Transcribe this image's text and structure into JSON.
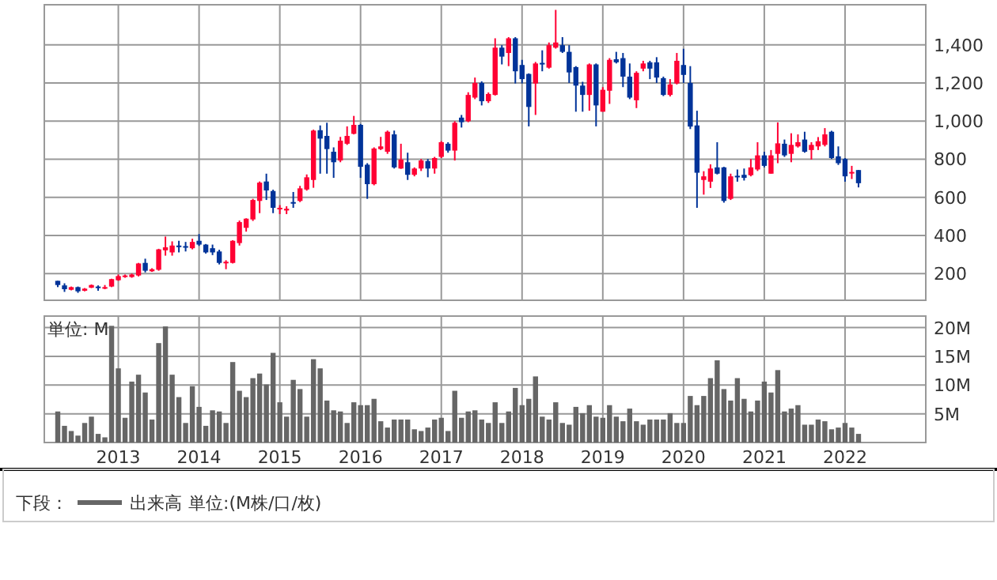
{
  "chart_data": [
    {
      "type": "candlestick",
      "grid": true,
      "tick_labels": "y",
      "xlim": [
        "2012-02",
        "2023-01"
      ],
      "ylim": [
        60,
        1610
      ],
      "xticks": [
        {
          "value": "2013",
          "label": null
        },
        {
          "value": "2014",
          "label": null
        },
        {
          "value": "2015",
          "label": null
        },
        {
          "value": "2016",
          "label": null
        },
        {
          "value": "2017",
          "label": null
        },
        {
          "value": "2018",
          "label": null
        },
        {
          "value": "2019",
          "label": null
        },
        {
          "value": "2020",
          "label": null
        },
        {
          "value": "2021",
          "label": null
        },
        {
          "value": "2022",
          "label": null
        }
      ],
      "yticks": [
        200,
        400,
        600,
        800,
        {
          "value": 1000,
          "label": "1,000"
        },
        {
          "value": 1200,
          "label": "1,200"
        },
        {
          "value": 1400,
          "label": "1,400"
        }
      ],
      "x": [
        "2012-04",
        "2012-05",
        "2012-06",
        "2012-07",
        "2012-08",
        "2012-09",
        "2012-10",
        "2012-11",
        "2012-12",
        "2013-01",
        "2013-02",
        "2013-03",
        "2013-04",
        "2013-05",
        "2013-06",
        "2013-07",
        "2013-08",
        "2013-09",
        "2013-10",
        "2013-11",
        "2013-12",
        "2014-01",
        "2014-02",
        "2014-03",
        "2014-04",
        "2014-05",
        "2014-06",
        "2014-07",
        "2014-08",
        "2014-09",
        "2014-10",
        "2014-11",
        "2014-12",
        "2015-01",
        "2015-02",
        "2015-03",
        "2015-04",
        "2015-05",
        "2015-06",
        "2015-07",
        "2015-08",
        "2015-09",
        "2015-10",
        "2015-11",
        "2015-12",
        "2016-01",
        "2016-02",
        "2016-03",
        "2016-04",
        "2016-05",
        "2016-06",
        "2016-07",
        "2016-08",
        "2016-09",
        "2016-10",
        "2016-11",
        "2016-12",
        "2017-01",
        "2017-02",
        "2017-03",
        "2017-04",
        "2017-05",
        "2017-06",
        "2017-07",
        "2017-08",
        "2017-09",
        "2017-10",
        "2017-11",
        "2017-12",
        "2018-01",
        "2018-02",
        "2018-03",
        "2018-04",
        "2018-05",
        "2018-06",
        "2018-07",
        "2018-08",
        "2018-09",
        "2018-10",
        "2018-11",
        "2018-12",
        "2019-01",
        "2019-02",
        "2019-03",
        "2019-04",
        "2019-05",
        "2019-06",
        "2019-07",
        "2019-08",
        "2019-09",
        "2019-10",
        "2019-11",
        "2019-12",
        "2020-01",
        "2020-02",
        "2020-03",
        "2020-04",
        "2020-05",
        "2020-06",
        "2020-07",
        "2020-08",
        "2020-09",
        "2020-10",
        "2020-11",
        "2020-12",
        "2021-01",
        "2021-02",
        "2021-03",
        "2021-04",
        "2021-05",
        "2021-06",
        "2021-07",
        "2021-08",
        "2021-09",
        "2021-10",
        "2021-11",
        "2021-12",
        "2022-01",
        "2022-02",
        "2022-03"
      ],
      "ohlc": [
        [
          162,
          162,
          129,
          140
        ],
        [
          138,
          149,
          104,
          118
        ],
        [
          115,
          132,
          112,
          129
        ],
        [
          129,
          132,
          99,
          107
        ],
        [
          110,
          124,
          107,
          121
        ],
        [
          126,
          143,
          124,
          140
        ],
        [
          132,
          138,
          110,
          126
        ],
        [
          127,
          140,
          118,
          129
        ],
        [
          132,
          173,
          129,
          171
        ],
        [
          165,
          195,
          162,
          187
        ],
        [
          182,
          195,
          178,
          190
        ],
        [
          182,
          200,
          178,
          195
        ],
        [
          190,
          256,
          185,
          253
        ],
        [
          256,
          278,
          206,
          215
        ],
        [
          212,
          228,
          209,
          223
        ],
        [
          220,
          330,
          215,
          327
        ],
        [
          322,
          394,
          294,
          338
        ],
        [
          311,
          369,
          294,
          347
        ],
        [
          347,
          372,
          311,
          344
        ],
        [
          344,
          366,
          316,
          340
        ],
        [
          333,
          383,
          327,
          366
        ],
        [
          372,
          407,
          345,
          352
        ],
        [
          352,
          355,
          305,
          311
        ],
        [
          333,
          352,
          297,
          311
        ],
        [
          316,
          325,
          248,
          256
        ],
        [
          259,
          270,
          223,
          262
        ],
        [
          256,
          375,
          253,
          372
        ],
        [
          360,
          478,
          347,
          470
        ],
        [
          440,
          490,
          420,
          488
        ],
        [
          484,
          592,
          476,
          586
        ],
        [
          581,
          683,
          517,
          677
        ],
        [
          683,
          724,
          586,
          636
        ],
        [
          633,
          640,
          517,
          545
        ],
        [
          540,
          559,
          512,
          545
        ],
        [
          531,
          553,
          512,
          540
        ],
        [
          575,
          628,
          545,
          570
        ],
        [
          581,
          660,
          575,
          647
        ],
        [
          641,
          720,
          635,
          705
        ],
        [
          691,
          955,
          650,
          950
        ],
        [
          952,
          977,
          724,
          908
        ],
        [
          922,
          991,
          724,
          853
        ],
        [
          839,
          862,
          702,
          784
        ],
        [
          793,
          917,
          784,
          897
        ],
        [
          881,
          972,
          875,
          922
        ],
        [
          933,
          1027,
          930,
          980
        ],
        [
          980,
          985,
          702,
          760
        ],
        [
          771,
          779,
          592,
          669
        ],
        [
          669,
          862,
          663,
          856
        ],
        [
          853,
          917,
          848,
          867
        ],
        [
          839,
          950,
          828,
          944
        ],
        [
          930,
          950,
          751,
          757
        ],
        [
          751,
          881,
          749,
          798
        ],
        [
          784,
          834,
          691,
          718
        ],
        [
          718,
          757,
          710,
          751
        ],
        [
          751,
          801,
          738,
          793
        ],
        [
          790,
          801,
          705,
          751
        ],
        [
          751,
          812,
          724,
          806
        ],
        [
          812,
          895,
          806,
          889
        ],
        [
          881,
          889,
          834,
          845
        ],
        [
          845,
          999,
          793,
          991
        ],
        [
          1018,
          1032,
          966,
          994
        ],
        [
          999,
          1151,
          994,
          1137
        ],
        [
          1123,
          1228,
          1115,
          1200
        ],
        [
          1200,
          1208,
          1082,
          1104
        ],
        [
          1104,
          1150,
          1095,
          1142
        ],
        [
          1137,
          1434,
          1134,
          1385
        ],
        [
          1385,
          1398,
          1297,
          1338
        ],
        [
          1357,
          1440,
          1288,
          1434
        ],
        [
          1434,
          1440,
          1197,
          1261
        ],
        [
          1294,
          1321,
          1197,
          1220
        ],
        [
          1247,
          1250,
          972,
          1074
        ],
        [
          1197,
          1310,
          1032,
          1302
        ],
        [
          1305,
          1371,
          1261,
          1297
        ],
        [
          1280,
          1412,
          1275,
          1398
        ],
        [
          1385,
          1583,
          1380,
          1412
        ],
        [
          1398,
          1440,
          1357,
          1363
        ],
        [
          1363,
          1398,
          1200,
          1255
        ],
        [
          1283,
          1288,
          1049,
          1186
        ],
        [
          1186,
          1206,
          1049,
          1137
        ],
        [
          1137,
          1302,
          1054,
          1297
        ],
        [
          1297,
          1302,
          972,
          1082
        ],
        [
          1049,
          1178,
          1049,
          1164
        ],
        [
          1159,
          1330,
          1090,
          1321
        ],
        [
          1324,
          1363,
          1302,
          1308
        ],
        [
          1330,
          1357,
          1178,
          1233
        ],
        [
          1233,
          1302,
          1115,
          1123
        ],
        [
          1109,
          1261,
          1068,
          1253
        ],
        [
          1275,
          1316,
          1261,
          1302
        ],
        [
          1308,
          1316,
          1220,
          1275
        ],
        [
          1308,
          1335,
          1200,
          1228
        ],
        [
          1225,
          1233,
          1131,
          1137
        ],
        [
          1137,
          1220,
          1129,
          1192
        ],
        [
          1197,
          1357,
          1192,
          1316
        ],
        [
          1294,
          1379,
          1200,
          1242
        ],
        [
          1200,
          1288,
          958,
          971
        ],
        [
          977,
          1054,
          545,
          729
        ],
        [
          691,
          737,
          614,
          710
        ],
        [
          682,
          773,
          649,
          751
        ],
        [
          757,
          889,
          720,
          724
        ],
        [
          757,
          760,
          572,
          581
        ],
        [
          592,
          724,
          586,
          710
        ],
        [
          713,
          746,
          682,
          707
        ],
        [
          718,
          751,
          688,
          702
        ],
        [
          716,
          801,
          710,
          757
        ],
        [
          746,
          889,
          738,
          820
        ],
        [
          820,
          839,
          757,
          765
        ],
        [
          724,
          848,
          724,
          820
        ],
        [
          828,
          993,
          779,
          883
        ],
        [
          881,
          903,
          812,
          820
        ],
        [
          828,
          936,
          784,
          875
        ],
        [
          867,
          930,
          861,
          889
        ],
        [
          903,
          944,
          834,
          839
        ],
        [
          848,
          889,
          798,
          875
        ],
        [
          867,
          916,
          848,
          894
        ],
        [
          875,
          963,
          867,
          930
        ],
        [
          944,
          949,
          801,
          806
        ],
        [
          815,
          867,
          770,
          779
        ],
        [
          801,
          806,
          682,
          710
        ],
        [
          727,
          765,
          696,
          733
        ],
        [
          743,
          743,
          652,
          674
        ]
      ]
    },
    {
      "type": "bar",
      "grid": true,
      "xlim": [
        "2012-02",
        "2023-01"
      ],
      "ylim": [
        0,
        22
      ],
      "legend": "bottom",
      "legend_title": "下段：",
      "annotations": [
        "単位: M",
        "単位:(M株/口/枚)"
      ],
      "xticks": [
        "2013",
        "2014",
        "2015",
        "2016",
        "2017",
        "2018",
        "2019",
        "2020",
        "2021",
        "2022"
      ],
      "yticks": [
        {
          "value": 5,
          "label": "5M"
        },
        {
          "value": 10,
          "label": "10M"
        },
        {
          "value": 15,
          "label": "15M"
        },
        {
          "value": 20,
          "label": "20M"
        }
      ],
      "x": [
        "2012-04",
        "2012-05",
        "2012-06",
        "2012-07",
        "2012-08",
        "2012-09",
        "2012-10",
        "2012-11",
        "2012-12",
        "2013-01",
        "2013-02",
        "2013-03",
        "2013-04",
        "2013-05",
        "2013-06",
        "2013-07",
        "2013-08",
        "2013-09",
        "2013-10",
        "2013-11",
        "2013-12",
        "2014-01",
        "2014-02",
        "2014-03",
        "2014-04",
        "2014-05",
        "2014-06",
        "2014-07",
        "2014-08",
        "2014-09",
        "2014-10",
        "2014-11",
        "2014-12",
        "2015-01",
        "2015-02",
        "2015-03",
        "2015-04",
        "2015-05",
        "2015-06",
        "2015-07",
        "2015-08",
        "2015-09",
        "2015-10",
        "2015-11",
        "2015-12",
        "2016-01",
        "2016-02",
        "2016-03",
        "2016-04",
        "2016-05",
        "2016-06",
        "2016-07",
        "2016-08",
        "2016-09",
        "2016-10",
        "2016-11",
        "2016-12",
        "2017-01",
        "2017-02",
        "2017-03",
        "2017-04",
        "2017-05",
        "2017-06",
        "2017-07",
        "2017-08",
        "2017-09",
        "2017-10",
        "2017-11",
        "2017-12",
        "2018-01",
        "2018-02",
        "2018-03",
        "2018-04",
        "2018-05",
        "2018-06",
        "2018-07",
        "2018-08",
        "2018-09",
        "2018-10",
        "2018-11",
        "2018-12",
        "2019-01",
        "2019-02",
        "2019-03",
        "2019-04",
        "2019-05",
        "2019-06",
        "2019-07",
        "2019-08",
        "2019-09",
        "2019-10",
        "2019-11",
        "2019-12",
        "2020-01",
        "2020-02",
        "2020-03",
        "2020-04",
        "2020-05",
        "2020-06",
        "2020-07",
        "2020-08",
        "2020-09",
        "2020-10",
        "2020-11",
        "2020-12",
        "2021-01",
        "2021-02",
        "2021-03",
        "2021-04",
        "2021-05",
        "2021-06",
        "2021-07",
        "2021-08",
        "2021-09",
        "2021-10",
        "2021-11",
        "2021-12",
        "2022-01",
        "2022-02",
        "2022-03"
      ],
      "series": [
        {
          "name": "出来高",
          "color": "#666666",
          "values": [
            5.4,
            2.9,
            2.0,
            1.2,
            3.4,
            4.5,
            1.5,
            0.9,
            20.3,
            12.9,
            4.3,
            10.6,
            11.8,
            8.7,
            4.0,
            17.3,
            20.2,
            11.8,
            7.9,
            3.4,
            9.8,
            6.2,
            2.9,
            5.6,
            5.4,
            3.4,
            14.0,
            9.0,
            7.9,
            11.2,
            12.0,
            10.1,
            15.6,
            7.0,
            4.5,
            10.9,
            9.3,
            4.5,
            14.5,
            12.9,
            7.3,
            5.6,
            5.4,
            3.4,
            7.0,
            6.5,
            6.5,
            7.6,
            3.7,
            2.6,
            4.0,
            4.0,
            4.0,
            2.3,
            2.0,
            2.6,
            4.0,
            4.3,
            2.0,
            9.0,
            4.3,
            5.4,
            5.6,
            4.0,
            3.4,
            7.0,
            3.4,
            5.4,
            9.5,
            6.5,
            7.6,
            11.5,
            4.5,
            4.0,
            7.0,
            3.4,
            3.1,
            6.2,
            5.1,
            6.5,
            4.5,
            4.3,
            6.5,
            4.5,
            3.7,
            5.9,
            3.7,
            3.1,
            4.0,
            4.0,
            4.0,
            5.1,
            3.4,
            3.4,
            8.1,
            6.5,
            8.1,
            11.2,
            14.3,
            9.3,
            7.3,
            11.2,
            7.6,
            5.4,
            7.3,
            10.6,
            8.7,
            12.6,
            5.4,
            5.9,
            6.5,
            3.1,
            3.1,
            4.0,
            3.7,
            2.3,
            2.6,
            3.4,
            2.6,
            1.5
          ]
        }
      ]
    }
  ]
}
